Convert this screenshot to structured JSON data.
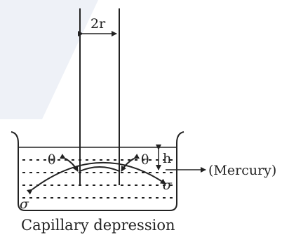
{
  "diagram": {
    "caption": "Capillary depression",
    "radius_label": "2r",
    "height_label": "h",
    "angle_label": "θ",
    "surface_tension_label": "σ",
    "liquid_label": "(Mercury)"
  },
  "colors": {
    "ink": "#222222",
    "background": "#ffffff",
    "watermark": "#eef1f7"
  }
}
